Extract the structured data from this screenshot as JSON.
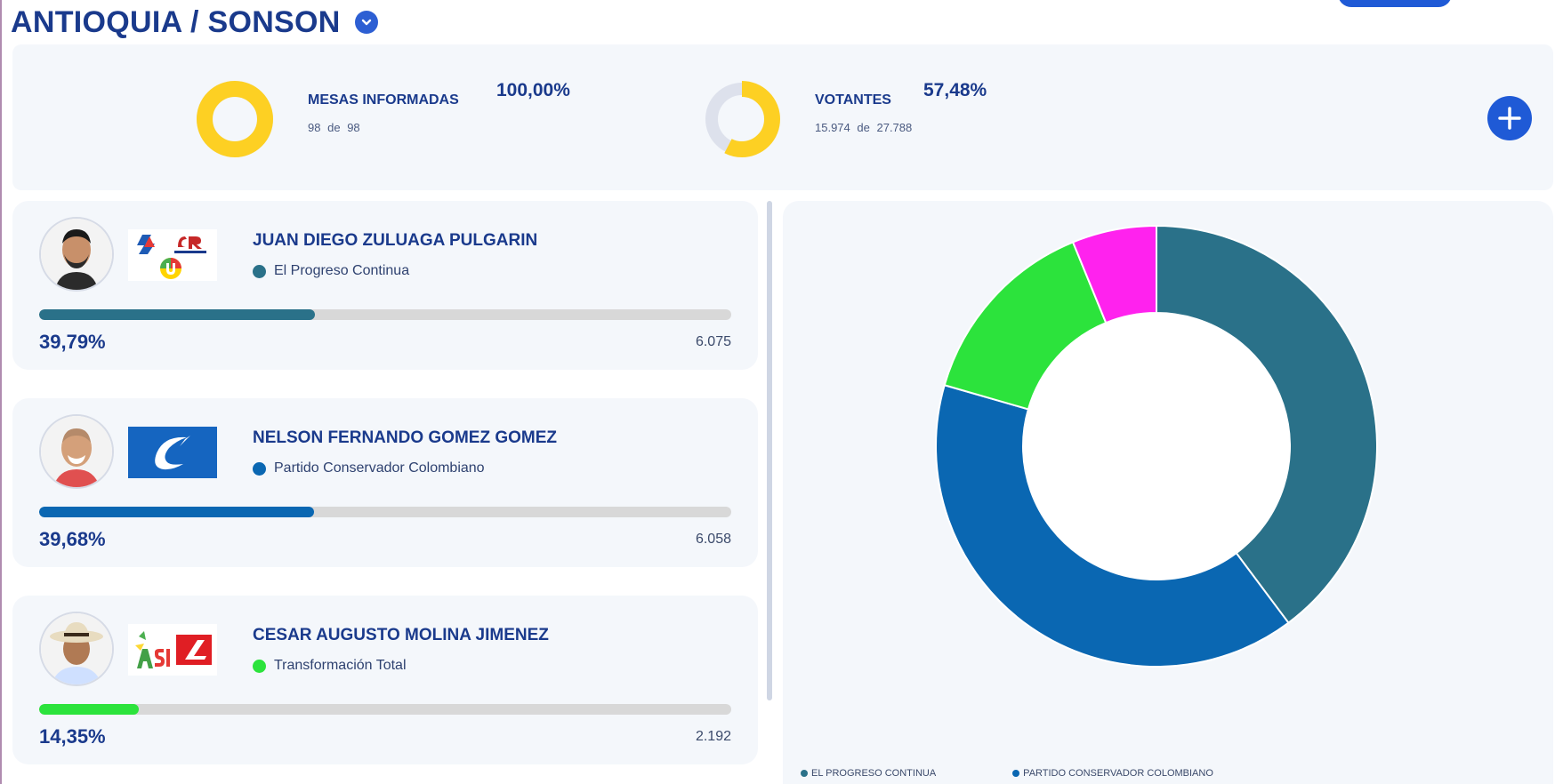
{
  "header": {
    "department": "ANTIOQUIA",
    "separator": "/",
    "municipality": "SONSON"
  },
  "stats": {
    "mesas": {
      "label": "MESAS INFORMADAS",
      "percent": "100,00%",
      "current": "98",
      "of_word": "de",
      "total": "98",
      "fraction": 1.0
    },
    "votantes": {
      "label": "VOTANTES",
      "percent": "57,48%",
      "current": "15.974",
      "of_word": "de",
      "total": "27.788",
      "fraction": 0.5748
    }
  },
  "candidates": [
    {
      "name": "JUAN DIEGO ZULUAGA PULGARIN",
      "party": "El Progreso Continua",
      "color": "#2a7189",
      "percent": "39,79%",
      "share": 0.3979,
      "votes": "6.075"
    },
    {
      "name": "NELSON FERNANDO GOMEZ GOMEZ",
      "party": "Partido Conservador Colombiano",
      "color": "#0a67b2",
      "percent": "39,68%",
      "share": 0.3968,
      "votes": "6.058"
    },
    {
      "name": "CESAR AUGUSTO MOLINA JIMENEZ",
      "party": "Transformación Total",
      "color": "#2ce33c",
      "percent": "14,35%",
      "share": 0.1435,
      "votes": "2.192"
    }
  ],
  "chart_data": {
    "type": "pie",
    "donut": true,
    "series": [
      {
        "name": "EL PROGRESO CONTINUA",
        "value": 39.79,
        "color": "#2a7189"
      },
      {
        "name": "PARTIDO CONSERVADOR COLOMBIANO",
        "value": 39.68,
        "color": "#0a67b2"
      },
      {
        "name": "",
        "value": 14.35,
        "color": "#2ce33c"
      },
      {
        "name": "",
        "value": 6.18,
        "color": "#ff22ee"
      }
    ],
    "legend": {
      "placement": "bottom-left",
      "entries": [
        "EL PROGRESO CONTINUA",
        "PARTIDO CONSERVADOR COLOMBIANO"
      ]
    }
  },
  "colors": {
    "accent": "#1f5ad6",
    "gold": "#fdd023",
    "text": "#1a3a8c"
  }
}
